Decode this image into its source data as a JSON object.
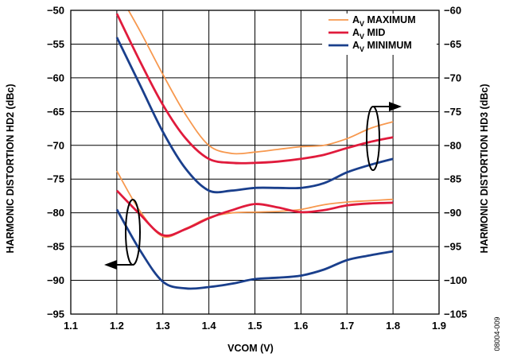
{
  "chart_data": {
    "type": "line",
    "xlabel": "VCOM (V)",
    "ylabel_left": "HARMONIC DISTORTION HD2 (dBc)",
    "ylabel_right": "HARMONIC DISTORTION HD3 (dBc)",
    "xlim": [
      1.1,
      1.9
    ],
    "ylim_left": [
      -95,
      -50
    ],
    "ylim_right": [
      -105,
      -60
    ],
    "x_ticks": [
      "1.1",
      "1.2",
      "1.3",
      "1.4",
      "1.5",
      "1.6",
      "1.7",
      "1.8",
      "1.9"
    ],
    "y_ticks_left": [
      "−50",
      "−55",
      "−60",
      "−65",
      "−70",
      "−75",
      "−80",
      "−85",
      "−90",
      "−95"
    ],
    "y_ticks_right": [
      "−60",
      "−65",
      "−70",
      "−75",
      "−80",
      "−85",
      "−90",
      "−95",
      "−100",
      "−105"
    ],
    "grid": true,
    "legend_position": "top-right",
    "legend": [
      {
        "base": "A",
        "sub": "V",
        "rest": " MAXIMUM",
        "color": "#f7984e"
      },
      {
        "base": "A",
        "sub": "V",
        "rest": " MID",
        "color": "#e01b3c"
      },
      {
        "base": "A",
        "sub": "V",
        "rest": " MINIMUM",
        "color": "#1a3f8c"
      }
    ],
    "series": [
      {
        "group": "HD3",
        "axis": "right",
        "color": "#f7984e",
        "x": [
          1.2,
          1.25,
          1.3,
          1.35,
          1.4,
          1.45,
          1.5,
          1.55,
          1.6,
          1.65,
          1.7,
          1.75,
          1.8
        ],
        "y": [
          -57,
          -63,
          -69.5,
          -75.5,
          -80,
          -81.2,
          -81,
          -80.6,
          -80.2,
          -80,
          -79,
          -77.5,
          -76.5
        ]
      },
      {
        "group": "HD3",
        "axis": "right",
        "color": "#e01b3c",
        "x": [
          1.2,
          1.25,
          1.3,
          1.35,
          1.4,
          1.45,
          1.5,
          1.55,
          1.6,
          1.65,
          1.7,
          1.75,
          1.8
        ],
        "y": [
          -60.5,
          -67.5,
          -74,
          -79,
          -82,
          -82.6,
          -82.6,
          -82.4,
          -82,
          -81.4,
          -80.4,
          -79.5,
          -78.8
        ]
      },
      {
        "group": "HD3",
        "axis": "right",
        "color": "#1a3f8c",
        "x": [
          1.2,
          1.25,
          1.3,
          1.35,
          1.4,
          1.45,
          1.5,
          1.55,
          1.6,
          1.65,
          1.7,
          1.75,
          1.8
        ],
        "y": [
          -64,
          -71,
          -78,
          -83.5,
          -86.7,
          -86.7,
          -86.3,
          -86.3,
          -86.3,
          -85.6,
          -84,
          -82.9,
          -82
        ]
      },
      {
        "group": "HD2",
        "axis": "left",
        "color": "#f7984e",
        "x": [
          1.2,
          1.25,
          1.3,
          1.35,
          1.4,
          1.45,
          1.5,
          1.55,
          1.6,
          1.65,
          1.7,
          1.75,
          1.8
        ],
        "y": [
          -73.8,
          -79.7,
          -83.5,
          -82.3,
          -80.7,
          -80,
          -79.9,
          -79.8,
          -79.5,
          -78.8,
          -78.4,
          -78.2,
          -78
        ]
      },
      {
        "group": "HD2",
        "axis": "left",
        "color": "#e01b3c",
        "x": [
          1.2,
          1.25,
          1.3,
          1.35,
          1.4,
          1.45,
          1.5,
          1.55,
          1.6,
          1.65,
          1.7,
          1.75,
          1.8
        ],
        "y": [
          -76.7,
          -80.2,
          -83.3,
          -82.4,
          -80.8,
          -79.6,
          -78.7,
          -79.2,
          -79.9,
          -79.6,
          -78.9,
          -78.6,
          -78.5
        ]
      },
      {
        "group": "HD2",
        "axis": "left",
        "color": "#1a3f8c",
        "x": [
          1.2,
          1.25,
          1.3,
          1.35,
          1.4,
          1.45,
          1.5,
          1.55,
          1.6,
          1.65,
          1.7,
          1.75,
          1.8
        ],
        "y": [
          -79.5,
          -85.5,
          -90.2,
          -91.2,
          -91,
          -90.5,
          -89.8,
          -89.6,
          -89.3,
          -88.4,
          -87,
          -86.3,
          -85.7
        ]
      }
    ]
  },
  "figure_id": "08004-009"
}
